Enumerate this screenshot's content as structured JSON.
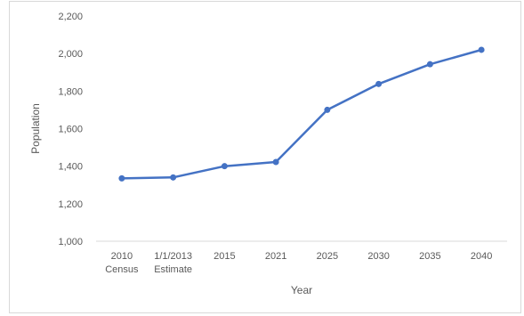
{
  "chart_data": {
    "type": "line",
    "title": "",
    "xlabel": "Year",
    "ylabel": "Population",
    "ylim": [
      1000,
      2200
    ],
    "yticks": [
      1000,
      1200,
      1400,
      1600,
      1800,
      2000,
      2200
    ],
    "ytick_labels": [
      "1,000",
      "1,200",
      "1,400",
      "1,600",
      "1,800",
      "2,000",
      "2,200"
    ],
    "grid": false,
    "legend": "none",
    "categories": [
      [
        "2010",
        "Census"
      ],
      [
        "1/1/2013",
        "Estimate"
      ],
      [
        "2015"
      ],
      [
        "2021"
      ],
      [
        "2025"
      ],
      [
        "2030"
      ],
      [
        "2035"
      ],
      [
        "2040"
      ]
    ],
    "series": [
      {
        "values": [
          1335,
          1340,
          1400,
          1422,
          1700,
          1838,
          1943,
          2020
        ],
        "color": "#4472c4"
      }
    ],
    "axis_color": "#d9d9d9"
  }
}
